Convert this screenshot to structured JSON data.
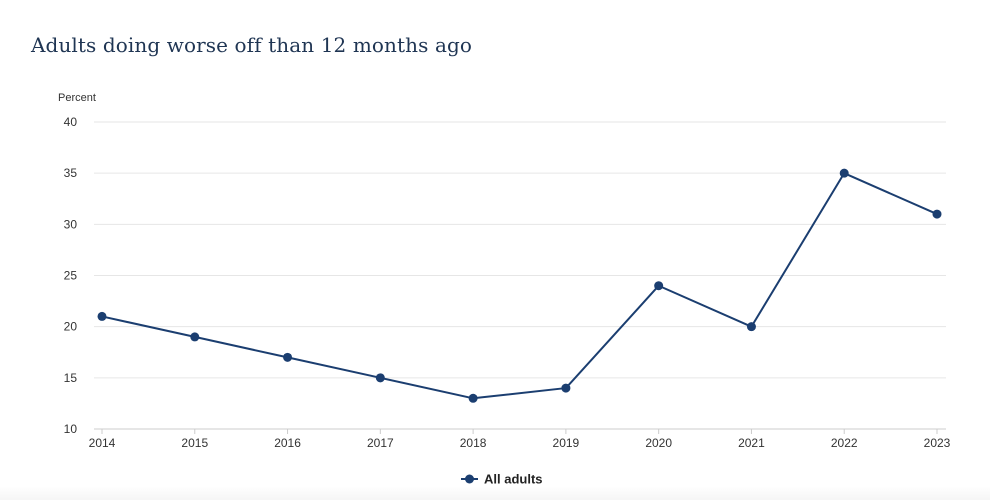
{
  "chart_data": {
    "type": "line",
    "title": "Adults doing worse off than 12 months ago",
    "ylabel": "Percent",
    "xlabel": "",
    "x": [
      "2014",
      "2015",
      "2016",
      "2017",
      "2018",
      "2019",
      "2020",
      "2021",
      "2022",
      "2023"
    ],
    "series": [
      {
        "name": "All adults",
        "values": [
          21,
          19,
          17,
          15,
          13,
          14,
          24,
          20,
          35,
          31
        ]
      }
    ],
    "ylim": [
      10,
      40
    ],
    "yticks": [
      10,
      15,
      20,
      25,
      30,
      35,
      40
    ],
    "grid": true,
    "legend": "bottom-center",
    "colors": {
      "series": "#1b3e70",
      "grid": "#e6e6e6",
      "axis": "#cccccc",
      "title": "#1f3553"
    }
  }
}
